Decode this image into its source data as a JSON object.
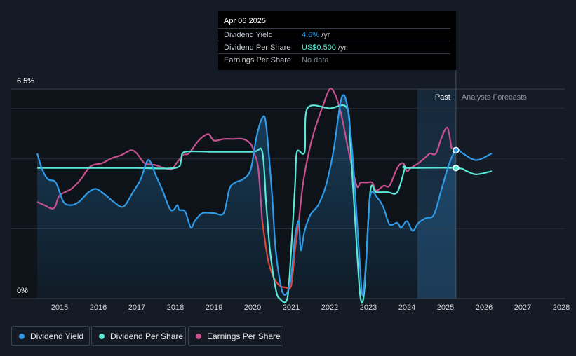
{
  "tooltip": {
    "date": "Apr 06 2025",
    "rows": [
      {
        "label": "Dividend Yield",
        "value": "4.6%",
        "unit": " /yr",
        "color": "#2f9be8"
      },
      {
        "label": "Dividend Per Share",
        "value": "US$0.500",
        "unit": " /yr",
        "color": "#5ce8d8"
      },
      {
        "label": "Earnings Per Share",
        "value": "No data",
        "unit": "",
        "color": "#7c828b"
      }
    ]
  },
  "legend": [
    {
      "label": "Dividend Yield",
      "color": "#2f9be8"
    },
    {
      "label": "Dividend Per Share",
      "color": "#5ce8d8"
    },
    {
      "label": "Earnings Per Share",
      "color": "#c8508f"
    }
  ],
  "chart_data": {
    "type": "line",
    "y_top_label": "6.5%",
    "y_bottom_label": "0%",
    "ylim": [
      0,
      6.5
    ],
    "xlim": [
      2014.4,
      2026.2
    ],
    "x_ticks": [
      "2015",
      "2016",
      "2017",
      "2018",
      "2019",
      "2020",
      "2021",
      "2022",
      "2023",
      "2024",
      "2025",
      "2026",
      "2027",
      "2028"
    ],
    "x_tick_values": [
      2015,
      2016,
      2017,
      2018,
      2019,
      2020,
      2021,
      2022,
      2023,
      2024,
      2025,
      2026,
      2027,
      2028
    ],
    "past_label": "Past",
    "forecast_label": "Analysts Forecasts",
    "divider_x": 2025.27,
    "highlight_start": 2024.27,
    "colors": {
      "yield": "#2f9be8",
      "dps": "#5ce8d8",
      "eps": "#c8508f",
      "eps_neg": "#e0443a"
    },
    "series": [
      {
        "name": "Dividend Yield",
        "key": "yield",
        "points": [
          [
            2014.42,
            4.5
          ],
          [
            2014.55,
            4.0
          ],
          [
            2014.7,
            3.7
          ],
          [
            2014.9,
            3.6
          ],
          [
            2015.1,
            3.0
          ],
          [
            2015.3,
            2.9
          ],
          [
            2015.5,
            3.0
          ],
          [
            2015.75,
            3.3
          ],
          [
            2015.95,
            3.4
          ],
          [
            2016.2,
            3.2
          ],
          [
            2016.4,
            3.0
          ],
          [
            2016.65,
            2.85
          ],
          [
            2016.9,
            3.3
          ],
          [
            2017.1,
            3.7
          ],
          [
            2017.3,
            4.3
          ],
          [
            2017.5,
            3.8
          ],
          [
            2017.65,
            3.4
          ],
          [
            2017.85,
            2.8
          ],
          [
            2017.95,
            2.75
          ],
          [
            2018.05,
            2.9
          ],
          [
            2018.1,
            2.75
          ],
          [
            2018.25,
            2.7
          ],
          [
            2018.4,
            2.2
          ],
          [
            2018.5,
            2.4
          ],
          [
            2018.7,
            2.65
          ],
          [
            2019.0,
            2.65
          ],
          [
            2019.25,
            2.65
          ],
          [
            2019.4,
            3.4
          ],
          [
            2019.55,
            3.6
          ],
          [
            2019.75,
            3.7
          ],
          [
            2019.95,
            4.0
          ],
          [
            2020.1,
            5.0
          ],
          [
            2020.25,
            5.6
          ],
          [
            2020.35,
            5.4
          ],
          [
            2020.5,
            3.3
          ],
          [
            2020.6,
            1.5
          ],
          [
            2020.75,
            0.3
          ],
          [
            2020.88,
            0.15
          ],
          [
            2021.0,
            0.7
          ],
          [
            2021.1,
            1.9
          ],
          [
            2021.2,
            2.4
          ],
          [
            2021.25,
            1.5
          ],
          [
            2021.35,
            2.1
          ],
          [
            2021.5,
            2.6
          ],
          [
            2021.7,
            2.9
          ],
          [
            2021.9,
            3.5
          ],
          [
            2022.1,
            4.6
          ],
          [
            2022.3,
            6.2
          ],
          [
            2022.45,
            6.0
          ],
          [
            2022.6,
            4.3
          ],
          [
            2022.75,
            1.6
          ],
          [
            2022.85,
            0.1
          ],
          [
            2022.95,
            1.3
          ],
          [
            2023.05,
            3.2
          ],
          [
            2023.25,
            3.1
          ],
          [
            2023.4,
            2.8
          ],
          [
            2023.55,
            2.3
          ],
          [
            2023.75,
            2.35
          ],
          [
            2023.85,
            2.2
          ],
          [
            2024.0,
            2.4
          ],
          [
            2024.15,
            2.1
          ],
          [
            2024.3,
            2.35
          ],
          [
            2024.5,
            2.5
          ],
          [
            2024.7,
            2.6
          ],
          [
            2024.9,
            3.4
          ],
          [
            2025.1,
            4.2
          ],
          [
            2025.27,
            4.6
          ],
          [
            2025.45,
            4.5
          ],
          [
            2025.65,
            4.35
          ],
          [
            2025.85,
            4.3
          ],
          [
            2026.2,
            4.5
          ]
        ]
      },
      {
        "name": "Dividend Per Share",
        "key": "dps",
        "points": [
          [
            2014.42,
            4.05
          ],
          [
            2015.0,
            4.05
          ],
          [
            2016.0,
            4.05
          ],
          [
            2017.0,
            4.05
          ],
          [
            2018.0,
            4.05
          ],
          [
            2018.15,
            4.3
          ],
          [
            2018.25,
            4.55
          ],
          [
            2019.0,
            4.55
          ],
          [
            2020.0,
            4.55
          ],
          [
            2020.25,
            4.55
          ],
          [
            2020.35,
            3.0
          ],
          [
            2020.45,
            1.5
          ],
          [
            2020.6,
            0.3
          ],
          [
            2020.7,
            0.0
          ],
          [
            2020.9,
            0.0
          ],
          [
            2021.0,
            1.5
          ],
          [
            2021.1,
            3.5
          ],
          [
            2021.15,
            4.55
          ],
          [
            2021.35,
            4.55
          ],
          [
            2021.42,
            5.9
          ],
          [
            2022.0,
            5.9
          ],
          [
            2022.45,
            5.9
          ],
          [
            2022.55,
            4.5
          ],
          [
            2022.7,
            1.6
          ],
          [
            2022.8,
            0.0
          ],
          [
            2022.9,
            0.3
          ],
          [
            2023.05,
            3.3
          ],
          [
            2023.2,
            3.3
          ],
          [
            2023.5,
            3.3
          ],
          [
            2023.75,
            3.3
          ],
          [
            2023.95,
            4.05
          ],
          [
            2024.0,
            4.05
          ],
          [
            2025.27,
            4.05
          ],
          [
            2025.55,
            3.95
          ],
          [
            2025.8,
            3.85
          ],
          [
            2026.2,
            3.95
          ]
        ]
      },
      {
        "name": "Earnings Per Share",
        "key": "eps",
        "points": [
          [
            2014.42,
            3.0
          ],
          [
            2014.6,
            2.9
          ],
          [
            2014.85,
            2.8
          ],
          [
            2015.0,
            3.2
          ],
          [
            2015.3,
            3.4
          ],
          [
            2015.55,
            3.7
          ],
          [
            2015.8,
            4.1
          ],
          [
            2016.1,
            4.2
          ],
          [
            2016.35,
            4.35
          ],
          [
            2016.6,
            4.45
          ],
          [
            2016.85,
            4.6
          ],
          [
            2017.0,
            4.5
          ],
          [
            2017.2,
            4.2
          ],
          [
            2017.45,
            4.15
          ],
          [
            2017.7,
            4.05
          ],
          [
            2017.9,
            4.0
          ],
          [
            2018.0,
            4.15
          ],
          [
            2018.2,
            4.45
          ],
          [
            2018.35,
            4.5
          ],
          [
            2018.6,
            4.9
          ],
          [
            2018.85,
            5.1
          ],
          [
            2019.0,
            4.9
          ],
          [
            2019.25,
            4.95
          ],
          [
            2019.5,
            4.95
          ],
          [
            2019.75,
            4.95
          ],
          [
            2019.95,
            4.8
          ],
          [
            2020.05,
            4.5
          ],
          [
            2020.15,
            4.0
          ],
          [
            2020.25,
            2.4
          ],
          [
            2020.4,
            1.2
          ],
          [
            2020.55,
            0.65
          ],
          [
            2020.7,
            0.4
          ],
          [
            2020.85,
            0.35
          ],
          [
            2021.0,
            0.4
          ],
          [
            2021.1,
            1.5
          ],
          [
            2021.2,
            2.4
          ],
          [
            2021.3,
            3.5
          ],
          [
            2021.45,
            4.5
          ],
          [
            2021.6,
            5.2
          ],
          [
            2021.8,
            5.9
          ],
          [
            2022.0,
            6.5
          ],
          [
            2022.15,
            6.3
          ],
          [
            2022.3,
            5.7
          ],
          [
            2022.5,
            4.5
          ],
          [
            2022.7,
            3.5
          ],
          [
            2022.8,
            3.6
          ],
          [
            2022.95,
            3.6
          ],
          [
            2023.1,
            3.6
          ],
          [
            2023.2,
            3.35
          ],
          [
            2023.4,
            3.5
          ],
          [
            2023.55,
            3.5
          ],
          [
            2023.75,
            4.05
          ],
          [
            2023.9,
            4.2
          ],
          [
            2024.0,
            3.95
          ],
          [
            2024.1,
            4.05
          ],
          [
            2024.3,
            4.2
          ],
          [
            2024.5,
            4.4
          ],
          [
            2024.6,
            4.5
          ],
          [
            2024.75,
            4.5
          ],
          [
            2024.9,
            5.0
          ],
          [
            2025.05,
            5.3
          ],
          [
            2025.15,
            4.7
          ],
          [
            2025.15,
            4.7
          ]
        ]
      }
    ],
    "yield_area_end": 2025.27,
    "eps_end": 2025.15,
    "marker_x": 2025.27,
    "markers": [
      {
        "key": "yield",
        "y": 4.6
      },
      {
        "key": "dps",
        "y": 4.05
      }
    ]
  }
}
